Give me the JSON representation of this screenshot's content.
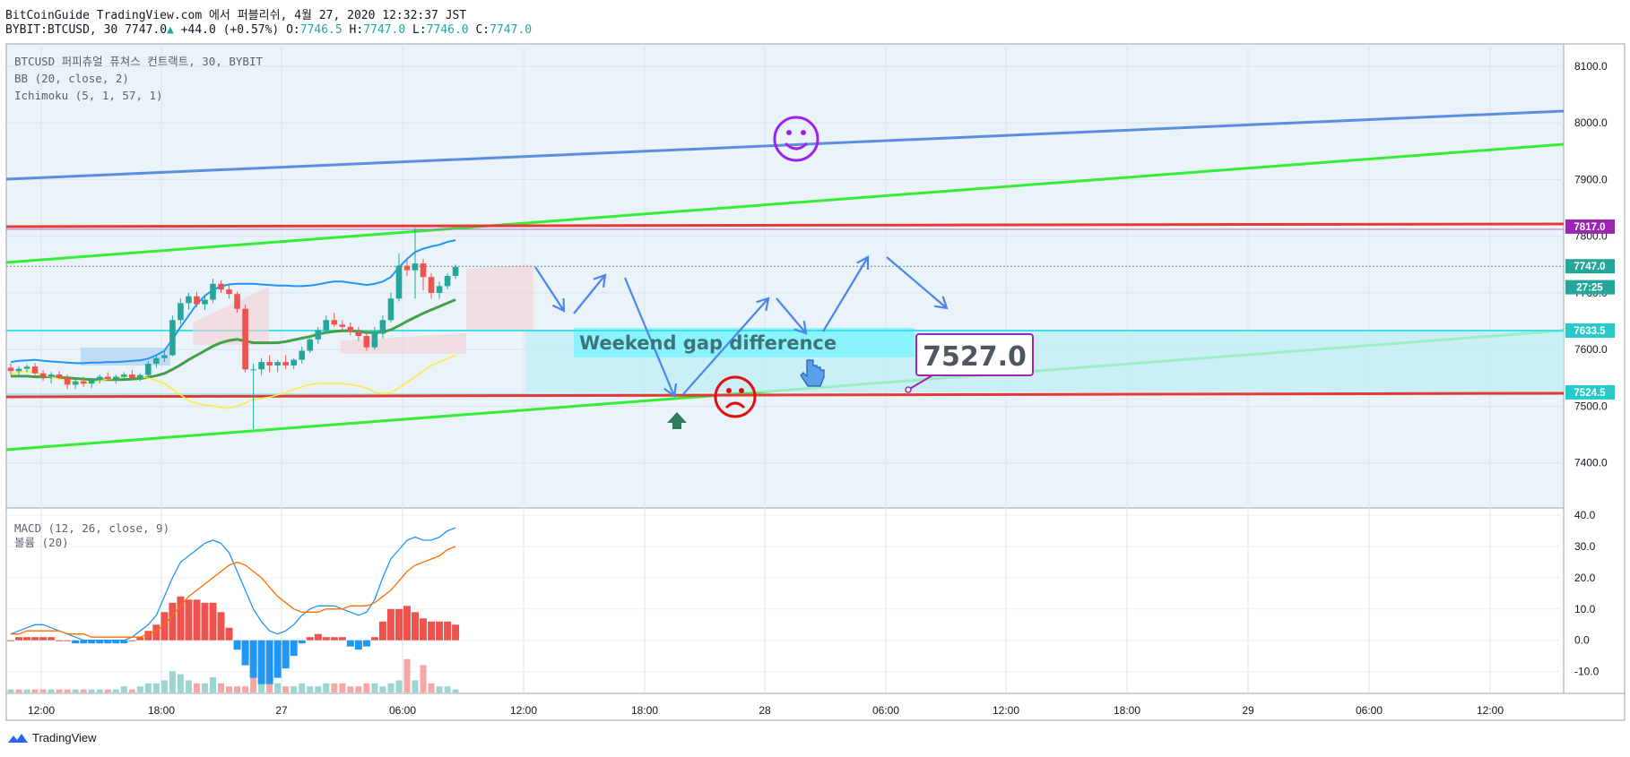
{
  "header": {
    "line1": "BitCoinGuide TradingView.com 에서 퍼블리쉬, 4월 27, 2020 12:32:37 JST",
    "symbol": "BYBIT:BTCUSD, 30",
    "last": "7747.0",
    "change": "+44.0 (+0.57%)",
    "open_label": "O:",
    "open": "7746.5",
    "high_label": "H:",
    "high": "7747.0",
    "low_label": "L:",
    "low": "7746.0",
    "close_label": "C:",
    "close": "7747.0"
  },
  "legend": {
    "main": [
      "BTCUSD 퍼피츄얼 퓨쳐스 컨트랙트, 30, BYBIT",
      "BB (20, close, 2)",
      "Ichimoku (5, 1, 57, 1)"
    ],
    "lower": [
      "MACD (12, 26, close, 9)",
      "볼륨 (20)"
    ]
  },
  "brand": "TradingView",
  "colors": {
    "up": "#26a69a",
    "down": "#ef5350",
    "level": "#e53935",
    "channel": "#33ee33",
    "trend": "#5b8ede",
    "gap": "#7ff3ff"
  },
  "annotations": {
    "gap_text": "Weekend gap difference",
    "price_callout": "7527.0",
    "price_labels": [
      {
        "text": "7817.0",
        "price": 7817,
        "color": "#9c27b0"
      },
      {
        "text": "7747.0",
        "price": 7747,
        "color": "#26a69a"
      },
      {
        "text": "27:25",
        "price": 7710,
        "color": "#26a69a"
      },
      {
        "text": "7633.5",
        "price": 7633.5,
        "color": "#27c9c9"
      },
      {
        "text": "7524.5",
        "price": 7524.5,
        "color": "#27c9c9"
      }
    ]
  },
  "chart_data": [
    {
      "type": "candlestick",
      "title": "",
      "x_ticks": [
        "12:00",
        "18:00",
        "27",
        "06:00",
        "12:00",
        "18:00",
        "28",
        "06:00",
        "12:00",
        "18:00",
        "29",
        "06:00",
        "12:00"
      ],
      "ylim": [
        7340,
        8120
      ],
      "y_ticks": [
        7400,
        7500,
        7600,
        7700,
        7800,
        7900,
        8000,
        8100
      ],
      "y_tick_labels": [
        "7400.0",
        "7500.0",
        "7600.0",
        "7700.0",
        "7800.0",
        "7900.0",
        "8000.0",
        "8100.0"
      ],
      "ohlc": [
        [
          7568,
          7575,
          7555,
          7562
        ],
        [
          7562,
          7570,
          7552,
          7566
        ],
        [
          7566,
          7574,
          7560,
          7570
        ],
        [
          7570,
          7576,
          7555,
          7558
        ],
        [
          7558,
          7564,
          7545,
          7552
        ],
        [
          7552,
          7560,
          7540,
          7556
        ],
        [
          7556,
          7562,
          7548,
          7550
        ],
        [
          7550,
          7556,
          7530,
          7538
        ],
        [
          7538,
          7548,
          7530,
          7544
        ],
        [
          7544,
          7552,
          7534,
          7540
        ],
        [
          7540,
          7550,
          7532,
          7546
        ],
        [
          7546,
          7556,
          7540,
          7552
        ],
        [
          7552,
          7560,
          7545,
          7548
        ],
        [
          7548,
          7556,
          7540,
          7552
        ],
        [
          7552,
          7560,
          7546,
          7556
        ],
        [
          7556,
          7564,
          7548,
          7550
        ],
        [
          7550,
          7558,
          7544,
          7555
        ],
        [
          7555,
          7580,
          7550,
          7575
        ],
        [
          7575,
          7590,
          7568,
          7585
        ],
        [
          7585,
          7600,
          7578,
          7590
        ],
        [
          7590,
          7660,
          7588,
          7652
        ],
        [
          7652,
          7690,
          7645,
          7682
        ],
        [
          7682,
          7700,
          7670,
          7694
        ],
        [
          7694,
          7702,
          7675,
          7680
        ],
        [
          7680,
          7695,
          7670,
          7688
        ],
        [
          7688,
          7725,
          7682,
          7716
        ],
        [
          7716,
          7722,
          7700,
          7706
        ],
        [
          7706,
          7715,
          7690,
          7698
        ],
        [
          7698,
          7702,
          7665,
          7672
        ],
        [
          7672,
          7680,
          7560,
          7565
        ],
        [
          7565,
          7575,
          7460,
          7565
        ],
        [
          7565,
          7585,
          7555,
          7578
        ],
        [
          7578,
          7590,
          7560,
          7572
        ],
        [
          7572,
          7582,
          7560,
          7578
        ],
        [
          7578,
          7590,
          7565,
          7572
        ],
        [
          7572,
          7585,
          7565,
          7582
        ],
        [
          7582,
          7605,
          7575,
          7598
        ],
        [
          7598,
          7625,
          7594,
          7618
        ],
        [
          7618,
          7640,
          7610,
          7634
        ],
        [
          7634,
          7660,
          7628,
          7652
        ],
        [
          7652,
          7665,
          7640,
          7644
        ],
        [
          7644,
          7652,
          7630,
          7640
        ],
        [
          7640,
          7648,
          7625,
          7632
        ],
        [
          7632,
          7640,
          7615,
          7624
        ],
        [
          7624,
          7632,
          7598,
          7604
        ],
        [
          7604,
          7640,
          7600,
          7628
        ],
        [
          7628,
          7660,
          7620,
          7652
        ],
        [
          7652,
          7700,
          7648,
          7690
        ],
        [
          7690,
          7770,
          7685,
          7748
        ],
        [
          7748,
          7760,
          7730,
          7740
        ],
        [
          7740,
          7815,
          7690,
          7752
        ],
        [
          7752,
          7760,
          7705,
          7728
        ],
        [
          7728,
          7735,
          7690,
          7700
        ],
        [
          7700,
          7720,
          7690,
          7712
        ],
        [
          7712,
          7735,
          7706,
          7730
        ],
        [
          7730,
          7750,
          7725,
          7746
        ]
      ],
      "bb_upper": [
        7578,
        7580,
        7581,
        7582,
        7580,
        7579,
        7578,
        7577,
        7576,
        7576,
        7577,
        7577,
        7578,
        7578,
        7579,
        7580,
        7581,
        7584,
        7590,
        7598,
        7618,
        7640,
        7660,
        7680,
        7695,
        7705,
        7712,
        7715,
        7716,
        7716,
        7716,
        7715,
        7714,
        7713,
        7713,
        7712,
        7712,
        7713,
        7715,
        7718,
        7720,
        7720,
        7718,
        7716,
        7714,
        7716,
        7720,
        7728,
        7745,
        7760,
        7772,
        7778,
        7782,
        7785,
        7790,
        7793
      ],
      "bb_basis": [
        7553,
        7553,
        7553,
        7552,
        7552,
        7552,
        7551,
        7550,
        7549,
        7548,
        7547,
        7547,
        7547,
        7547,
        7547,
        7548,
        7549,
        7551,
        7554,
        7558,
        7565,
        7573,
        7582,
        7590,
        7598,
        7606,
        7612,
        7616,
        7618,
        7615,
        7612,
        7612,
        7612,
        7612,
        7614,
        7617,
        7620,
        7623,
        7627,
        7630,
        7632,
        7633,
        7633,
        7632,
        7630,
        7630,
        7631,
        7635,
        7642,
        7650,
        7657,
        7664,
        7670,
        7676,
        7682,
        7688
      ],
      "tenkan": [
        7558,
        7560,
        7562,
        7560,
        7555,
        7552,
        7548,
        7545,
        7542,
        7540,
        7542,
        7545,
        7548,
        7550,
        7552,
        7553,
        7552,
        7550,
        7545,
        7540,
        7530,
        7520,
        7510,
        7505,
        7502,
        7500,
        7498,
        7496,
        7500,
        7506,
        7512,
        7514,
        7516,
        7520,
        7524,
        7530,
        7534,
        7538,
        7540,
        7540,
        7540,
        7540,
        7538,
        7536,
        7532,
        7525,
        7522,
        7524,
        7532,
        7542,
        7552,
        7562,
        7572,
        7578,
        7584,
        7590
      ],
      "levels": [
        {
          "name": "resistance",
          "price": 7817
        },
        {
          "name": "gap_top",
          "price": 7633.5
        },
        {
          "name": "gap_bottom",
          "price": 7524.5
        },
        {
          "name": "support",
          "price": 7524.5
        }
      ]
    },
    {
      "type": "bar+line",
      "title": "",
      "ylim": [
        -17,
        40
      ],
      "y_ticks": [
        -10,
        0,
        10,
        20,
        30,
        40
      ],
      "y_tick_labels": [
        "-10.0",
        "0.0",
        "10.0",
        "20.0",
        "30.0",
        "40.0"
      ],
      "macd": [
        2,
        3,
        4,
        5,
        5,
        4,
        3,
        2,
        1,
        0,
        0,
        0,
        0,
        0,
        0,
        1,
        3,
        5,
        8,
        14,
        20,
        25,
        27,
        29,
        31,
        32,
        31,
        28,
        22,
        16,
        10,
        6,
        3,
        2,
        3,
        5,
        8,
        10,
        11,
        11,
        11,
        10,
        9,
        8,
        9,
        13,
        20,
        26,
        29,
        32,
        33,
        32,
        32,
        33,
        35,
        36
      ],
      "signal": [
        2,
        2,
        3,
        3,
        3,
        3,
        3,
        2,
        2,
        2,
        1,
        1,
        1,
        1,
        1,
        1,
        1,
        2,
        3,
        5,
        8,
        11,
        14,
        16,
        18,
        20,
        22,
        24,
        25,
        24,
        22,
        20,
        17,
        14,
        12,
        10,
        9,
        9,
        9,
        10,
        10,
        10,
        11,
        11,
        11,
        12,
        14,
        16,
        19,
        22,
        24,
        25,
        26,
        27,
        29,
        30
      ],
      "histogram": [
        0,
        1,
        1,
        1,
        1,
        1,
        0,
        0,
        -1,
        -1,
        -1,
        -1,
        -1,
        -1,
        -1,
        0,
        1,
        3,
        5,
        9,
        12,
        14,
        13,
        13,
        12,
        12,
        9,
        4,
        -3,
        -8,
        -12,
        -14,
        -14,
        -12,
        -9,
        -5,
        -1,
        1,
        2,
        1,
        1,
        1,
        -2,
        -3,
        -2,
        1,
        6,
        10,
        10,
        11,
        9,
        7,
        6,
        6,
        6,
        5
      ],
      "volume": [
        1,
        1,
        1,
        1,
        1,
        1,
        1,
        1,
        1,
        1,
        1,
        1,
        1,
        1,
        2,
        1,
        2,
        3,
        3,
        4,
        7,
        6,
        4,
        3,
        3,
        5,
        3,
        2,
        2,
        2,
        14,
        5,
        4,
        3,
        2,
        2,
        3,
        2,
        2,
        3,
        3,
        3,
        2,
        2,
        3,
        3,
        2,
        3,
        4,
        11,
        4,
        9,
        3,
        2,
        2,
        1
      ],
      "volume_up": [
        true,
        false,
        true,
        false,
        false,
        true,
        false,
        false,
        true,
        false,
        true,
        true,
        false,
        true,
        true,
        false,
        true,
        true,
        true,
        true,
        true,
        true,
        true,
        false,
        true,
        true,
        false,
        false,
        false,
        false,
        false,
        true,
        false,
        true,
        false,
        true,
        true,
        true,
        true,
        true,
        false,
        false,
        false,
        false,
        false,
        true,
        true,
        true,
        true,
        false,
        true,
        false,
        false,
        true,
        true,
        true
      ]
    }
  ]
}
